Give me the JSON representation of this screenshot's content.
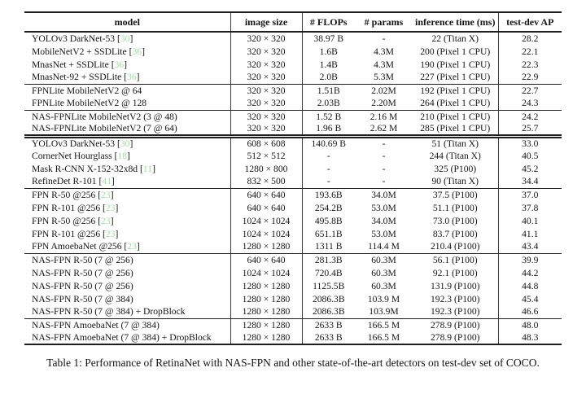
{
  "colors": {
    "citation_green": "#a6d9a6",
    "rule": "#1e1e1e",
    "text": "#151515",
    "background": "#fefefe"
  },
  "citation": {
    "open": "[",
    "close": "]"
  },
  "table": {
    "headers": [
      "model",
      "image size",
      "# FLOPs",
      "# params",
      "inference time (ms)",
      "test-dev AP"
    ],
    "groups": [
      {
        "separator": "none",
        "rows": [
          {
            "model": "YOLOv3 DarkNet-53",
            "cite": "30",
            "image_size": "320 × 320",
            "flops": "38.97 B",
            "params": "-",
            "inference": "22 (Titan X)",
            "ap": "28.2"
          },
          {
            "model": "MobileNetV2 + SSDLite",
            "cite": "36",
            "image_size": "320 × 320",
            "flops": "1.6B",
            "params": "4.3M",
            "inference": "200 (Pixel 1 CPU)",
            "ap": "22.1"
          },
          {
            "model": "MnasNet + SSDLite",
            "cite": "36",
            "image_size": "320 × 320",
            "flops": "1.4B",
            "params": "4.3M",
            "inference": "190 (Pixel 1 CPU)",
            "ap": "22.3"
          },
          {
            "model": "MnasNet-92 + SSDLite",
            "cite": "36",
            "image_size": "320 × 320",
            "flops": "2.0B",
            "params": "5.3M",
            "inference": "227 (Pixel 1 CPU)",
            "ap": "22.9"
          }
        ]
      },
      {
        "separator": "single",
        "rows": [
          {
            "model": "FPNLite MobileNetV2  @ 64",
            "cite": null,
            "image_size": "320 × 320",
            "flops": "1.51B",
            "params": "2.02M",
            "inference": "192 (Pixel 1 CPU)",
            "ap": "22.7"
          },
          {
            "model": "FPNLite MobileNetV2  @ 128",
            "cite": null,
            "image_size": "320 × 320",
            "flops": "2.03B",
            "params": "2.20M",
            "inference": "264 (Pixel 1 CPU)",
            "ap": "24.3"
          }
        ]
      },
      {
        "separator": "single",
        "rows": [
          {
            "model": "NAS-FPNLite MobileNetV2 (3 @ 48)",
            "cite": null,
            "image_size": "320 × 320",
            "flops": "1.52 B",
            "params": "2.16 M",
            "inference": "210 (Pixel 1 CPU)",
            "ap": "24.2"
          },
          {
            "model": "NAS-FPNLite MobileNetV2 (7 @ 64)",
            "cite": null,
            "image_size": "320 × 320",
            "flops": "1.96 B",
            "params": "2.62 M",
            "inference": "285 (Pixel 1 CPU)",
            "ap": "25.7"
          }
        ]
      },
      {
        "separator": "double",
        "rows": [
          {
            "model": "YOLOv3 DarkNet-53",
            "cite": "30",
            "image_size": "608 × 608",
            "flops": "140.69 B",
            "params": "-",
            "inference": "51 (Titan X)",
            "ap": "33.0"
          },
          {
            "model": "CornerNet Hourglass",
            "cite": "18",
            "image_size": "512 × 512",
            "flops": "-",
            "params": "-",
            "inference": "244 (Titan X)",
            "ap": "40.5"
          },
          {
            "model": "Mask R-CNN X-152-32x8d",
            "cite": "11",
            "image_size": "1280 × 800",
            "flops": "-",
            "params": "-",
            "inference": "325 (P100)",
            "ap": "45.2"
          },
          {
            "model": "RefineDet R-101",
            "cite": "41",
            "image_size": "832 × 500",
            "flops": "-",
            "params": "-",
            "inference": "90 (Titan X)",
            "ap": "34.4"
          }
        ]
      },
      {
        "separator": "single",
        "rows": [
          {
            "model": "FPN R-50 @256",
            "cite": "23",
            "image_size": "640 × 640",
            "flops": "193.6B",
            "params": "34.0M",
            "inference": "37.5 (P100)",
            "ap": "37.0"
          },
          {
            "model": "FPN R-101 @256",
            "cite": "23",
            "image_size": "640 × 640",
            "flops": "254.2B",
            "params": "53.0M",
            "inference": "51.1 (P100)",
            "ap": "37.8"
          },
          {
            "model": "FPN R-50 @256",
            "cite": "23",
            "image_size": "1024 × 1024",
            "flops": "495.8B",
            "params": "34.0M",
            "inference": "73.0 (P100)",
            "ap": "40.1"
          },
          {
            "model": "FPN R-101 @256",
            "cite": "23",
            "image_size": "1024 × 1024",
            "flops": "651.1B",
            "params": "53.0M",
            "inference": "83.7 (P100)",
            "ap": "41.1"
          },
          {
            "model": "FPN AmoebaNet @256",
            "cite": "23",
            "image_size": "1280 × 1280",
            "flops": "1311 B",
            "params": "114.4 M",
            "inference": "210.4 (P100)",
            "ap": "43.4"
          }
        ]
      },
      {
        "separator": "single",
        "rows": [
          {
            "model": "NAS-FPN R-50 (7 @ 256)",
            "cite": null,
            "image_size": "640 × 640",
            "flops": "281.3B",
            "params": "60.3M",
            "inference": "56.1 (P100)",
            "ap": "39.9"
          },
          {
            "model": "NAS-FPN R-50 (7 @ 256)",
            "cite": null,
            "image_size": "1024 × 1024",
            "flops": "720.4B",
            "params": "60.3M",
            "inference": "92.1 (P100)",
            "ap": "44.2"
          },
          {
            "model": "NAS-FPN R-50 (7 @ 256)",
            "cite": null,
            "image_size": "1280 × 1280",
            "flops": "1125.5B",
            "params": "60.3M",
            "inference": "131.9 (P100)",
            "ap": "44.8"
          },
          {
            "model": "NAS-FPN R-50 (7 @ 384)",
            "cite": null,
            "image_size": "1280 × 1280",
            "flops": "2086.3B",
            "params": "103.9 M",
            "inference": "192.3 (P100)",
            "ap": "45.4"
          },
          {
            "model": "NAS-FPN R-50 (7 @ 384) + DropBlock",
            "cite": null,
            "image_size": "1280 × 1280",
            "flops": "2086.3B",
            "params": "103.9M",
            "inference": "192.3 (P100)",
            "ap": "46.6"
          }
        ]
      },
      {
        "separator": "single",
        "rows": [
          {
            "model": "NAS-FPN AmoebaNet (7 @ 384)",
            "cite": null,
            "image_size": "1280 × 1280",
            "flops": "2633 B",
            "params": "166.5 M",
            "inference": "278.9 (P100)",
            "ap": "48.0"
          },
          {
            "model": "NAS-FPN AmoebaNet (7 @ 384) + DropBlock",
            "cite": null,
            "image_size": "1280 × 1280",
            "flops": "2633 B",
            "params": "166.5 M",
            "inference": "278.9 (P100)",
            "ap": "48.3"
          }
        ]
      }
    ],
    "caption": "Table 1: Performance of RetinaNet with NAS-FPN and other state-of-the-art detectors on test-dev set of COCO."
  }
}
